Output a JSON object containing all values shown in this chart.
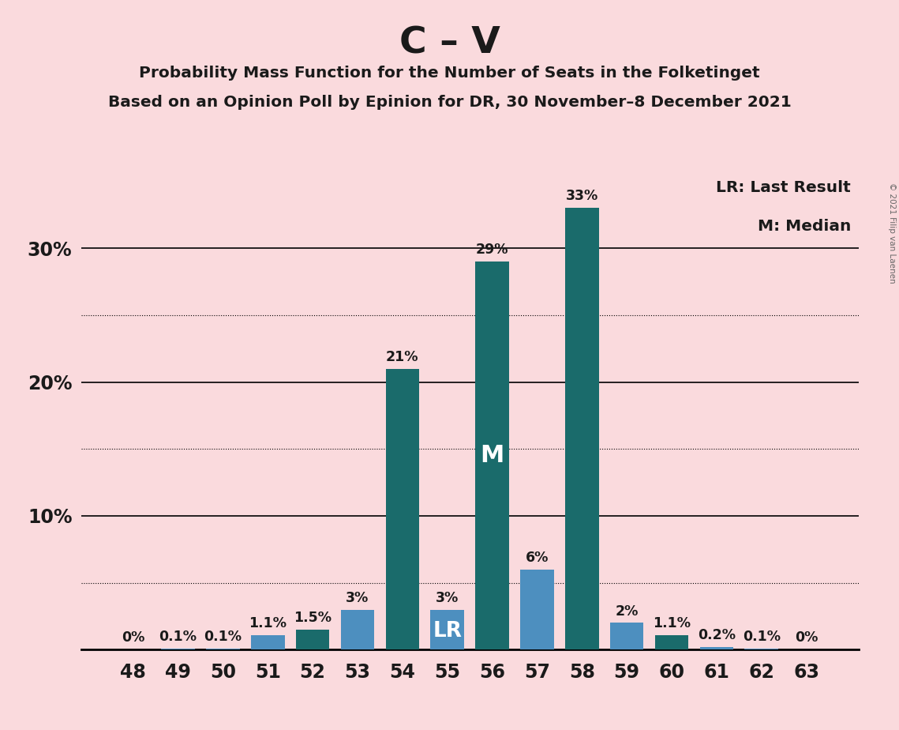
{
  "title": "C – V",
  "subtitle1": "Probability Mass Function for the Number of Seats in the Folketinget",
  "subtitle2": "Based on an Opinion Poll by Epinion for DR, 30 November–8 December 2021",
  "copyright": "© 2021 Filip van Laenen",
  "seats": [
    48,
    49,
    50,
    51,
    52,
    53,
    54,
    55,
    56,
    57,
    58,
    59,
    60,
    61,
    62,
    63
  ],
  "values": [
    0.0,
    0.1,
    0.1,
    1.1,
    1.5,
    3.0,
    21.0,
    3.0,
    29.0,
    6.0,
    33.0,
    2.0,
    1.1,
    0.2,
    0.1,
    0.0
  ],
  "labels": [
    "0%",
    "0.1%",
    "0.1%",
    "1.1%",
    "1.5%",
    "3%",
    "21%",
    "3%",
    "29%",
    "6%",
    "33%",
    "2%",
    "1.1%",
    "0.2%",
    "0.1%",
    "0%"
  ],
  "last_result_seat": 55,
  "median_seat": 56,
  "teal_color": "#1a6b6b",
  "blue_color": "#4d8fbf",
  "background_color": "#fadadd",
  "ylim_max": 36,
  "major_gridlines": [
    10,
    20,
    30
  ],
  "minor_gridlines": [
    5,
    15,
    25
  ],
  "legend_text1": "LR: Last Result",
  "legend_text2": "M: Median",
  "bar_colors_by_seat": {
    "48": "#1a6b6b",
    "49": "#4d8fbf",
    "50": "#4d8fbf",
    "51": "#4d8fbf",
    "52": "#1a6b6b",
    "53": "#4d8fbf",
    "54": "#1a6b6b",
    "55": "#4d8fbf",
    "56": "#1a6b6b",
    "57": "#4d8fbf",
    "58": "#1a6b6b",
    "59": "#4d8fbf",
    "60": "#1a6b6b",
    "61": "#4d8fbf",
    "62": "#4d8fbf",
    "63": "#4d8fbf"
  }
}
